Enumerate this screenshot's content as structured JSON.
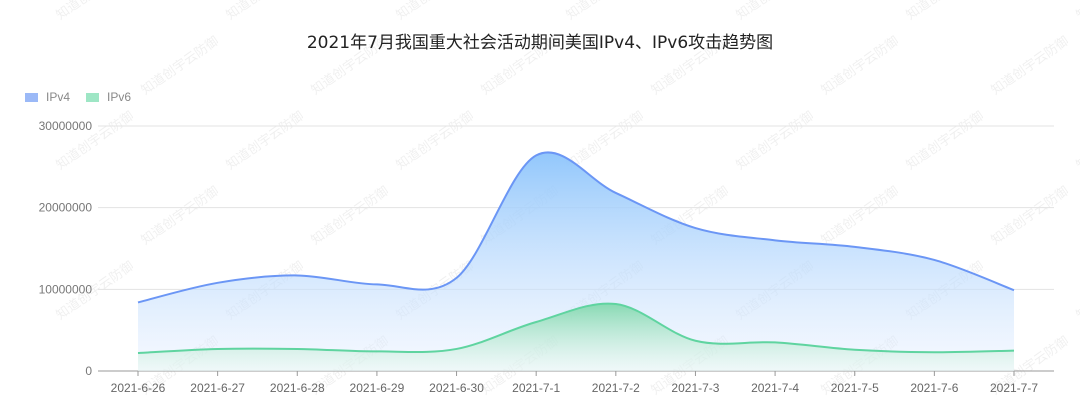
{
  "chart_data": {
    "type": "area",
    "title": "2021年7月我国重大社会活动期间美国IPv4、IPv6攻击趋势图",
    "categories": [
      "2021-6-26",
      "2021-6-27",
      "2021-6-28",
      "2021-6-29",
      "2021-6-30",
      "2021-7-1",
      "2021-7-2",
      "2021-7-3",
      "2021-7-4",
      "2021-7-5",
      "2021-7-6",
      "2021-7-7"
    ],
    "series": [
      {
        "name": "IPv4",
        "color": "#6b96f5",
        "values": [
          8400000,
          10800000,
          11700000,
          10600000,
          11400000,
          26400000,
          21800000,
          17500000,
          16000000,
          15200000,
          13600000,
          9900000
        ]
      },
      {
        "name": "IPv6",
        "color": "#5fd4a0",
        "values": [
          2200000,
          2700000,
          2700000,
          2400000,
          2700000,
          6000000,
          8200000,
          3700000,
          3500000,
          2600000,
          2300000,
          2500000
        ]
      }
    ],
    "ylim": [
      0,
      30000000
    ],
    "yticks": [
      "0",
      "10000000",
      "20000000",
      "30000000"
    ],
    "grid": true,
    "legend": "top-left",
    "xlabel": "",
    "ylabel": ""
  },
  "watermark": "知道创宇云防御"
}
